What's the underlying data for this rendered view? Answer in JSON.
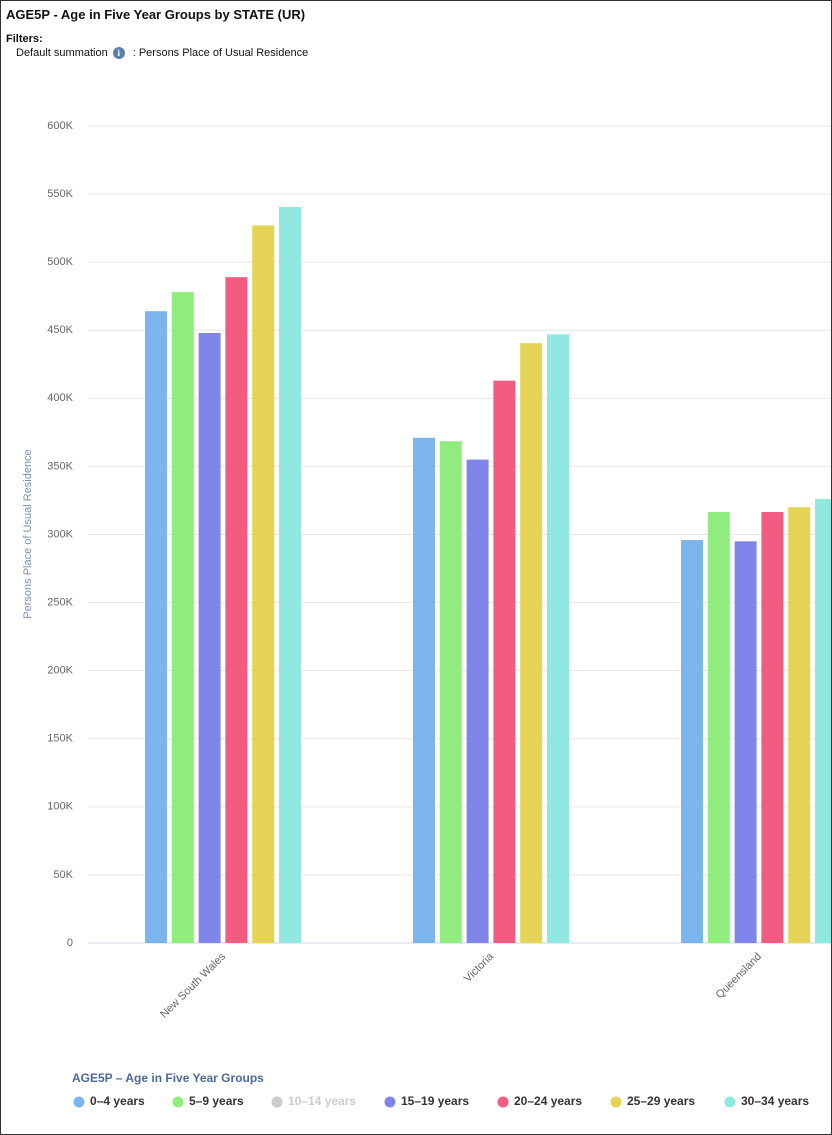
{
  "chart_data": {
    "type": "bar",
    "title": "AGE5P - Age in Five Year Groups by STATE (UR)",
    "filters_label": "Filters:",
    "filter": {
      "name": "Default summation",
      "value": ": Persons Place of Usual Residence"
    },
    "y_label": "Persons Place of Usual Residence",
    "legend_title": "AGE5P – Age in Five Year Groups",
    "categories": [
      "New South Wales",
      "Victoria",
      "Queensland"
    ],
    "series": [
      {
        "name": "0–4 years",
        "color": "#7cb5ec",
        "values": [
          464000,
          371000,
          296000
        ]
      },
      {
        "name": "5–9 years",
        "color": "#90ed7d",
        "values": [
          478000,
          368500,
          316500
        ]
      },
      {
        "name": "10–14 years",
        "visible": false,
        "values": [
          null,
          null,
          null
        ]
      },
      {
        "name": "15–19 years",
        "color": "#8085e9",
        "values": [
          448000,
          355000,
          295000
        ]
      },
      {
        "name": "20–24 years",
        "color": "#f15c80",
        "values": [
          489000,
          413000,
          316500
        ]
      },
      {
        "name": "25–29 years",
        "color": "#e4d354",
        "values": [
          527000,
          440500,
          320000
        ]
      },
      {
        "name": "30–34 years",
        "color": "#91e8e1",
        "values": [
          540500,
          447000,
          326000
        ]
      }
    ],
    "ylim": [
      0,
      600000
    ],
    "yticks": [
      0,
      {
        "value": 50000,
        "label": "50K"
      },
      {
        "value": 100000,
        "label": "100K"
      },
      {
        "value": 150000,
        "label": "150K"
      },
      {
        "value": 200000,
        "label": "200K"
      },
      {
        "value": 250000,
        "label": "250K"
      },
      {
        "value": 300000,
        "label": "300K"
      },
      {
        "value": 350000,
        "label": "350K"
      },
      {
        "value": 400000,
        "label": "400K"
      },
      {
        "value": 450000,
        "label": "450K"
      },
      {
        "value": 500000,
        "label": "500K"
      },
      {
        "value": 550000,
        "label": "550K"
      },
      {
        "value": 600000,
        "label": "600K"
      }
    ],
    "grid": true
  }
}
